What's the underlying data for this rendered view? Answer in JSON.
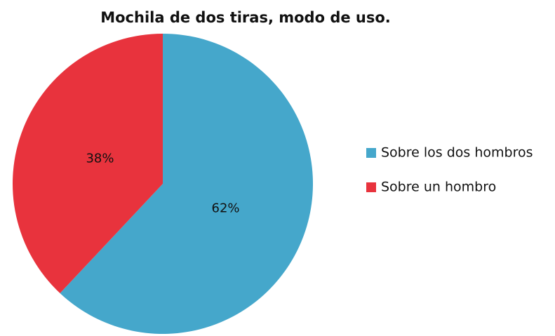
{
  "chart_data": {
    "type": "pie",
    "title": "Mochila de dos tiras, modo de uso.",
    "categories": [
      "Sobre los dos hombros",
      "Sobre un hombro"
    ],
    "values": [
      62,
      38
    ],
    "value_labels": [
      "62%",
      "38%"
    ],
    "colors": [
      "#45a7cb",
      "#e8333d"
    ],
    "legend": "right"
  }
}
